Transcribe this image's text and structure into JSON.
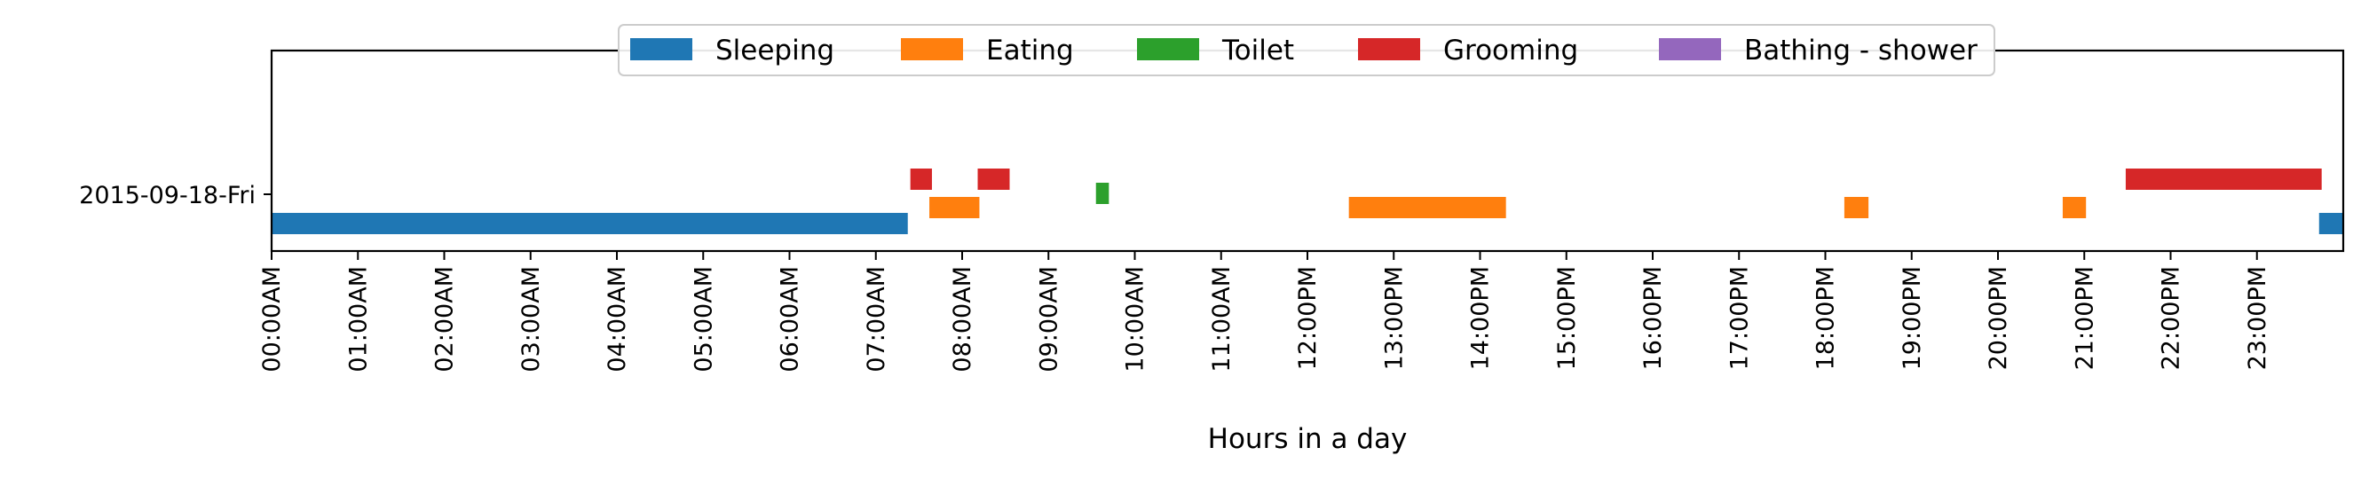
{
  "chart_data": {
    "type": "timeline",
    "title": "",
    "xlabel": "Hours in a day",
    "ylabel": "",
    "xlim": [
      0,
      24
    ],
    "x_unit": "hours",
    "grid": false,
    "legend_placement": "top-center",
    "row_label": "2015-09-18-Fri",
    "x_tick_labels": [
      "00:00AM",
      "01:00AM",
      "02:00AM",
      "03:00AM",
      "04:00AM",
      "05:00AM",
      "06:00AM",
      "07:00AM",
      "08:00AM",
      "09:00AM",
      "10:00AM",
      "11:00AM",
      "12:00PM",
      "13:00PM",
      "14:00PM",
      "15:00PM",
      "16:00PM",
      "17:00PM",
      "18:00PM",
      "19:00PM",
      "20:00PM",
      "21:00PM",
      "22:00PM",
      "23:00PM"
    ],
    "series": [
      {
        "name": "Sleeping",
        "color": "#1f77b4",
        "lane": 0,
        "intervals": [
          [
            0.0,
            7.37
          ],
          [
            23.72,
            24.0
          ]
        ]
      },
      {
        "name": "Eating",
        "color": "#ff7f0e",
        "lane": 1,
        "intervals": [
          [
            7.62,
            8.2
          ],
          [
            12.48,
            14.3
          ],
          [
            18.22,
            18.5
          ],
          [
            20.75,
            21.02
          ]
        ]
      },
      {
        "name": "Toilet",
        "color": "#2ca02c",
        "lane": 2,
        "intervals": [
          [
            9.55,
            9.7
          ]
        ]
      },
      {
        "name": "Grooming",
        "color": "#d62728",
        "lane": 3,
        "intervals": [
          [
            7.4,
            7.65
          ],
          [
            8.18,
            8.55
          ],
          [
            21.48,
            23.75
          ]
        ]
      },
      {
        "name": "Bathing - shower",
        "color": "#9467bd",
        "lane": 4,
        "intervals": []
      }
    ]
  }
}
